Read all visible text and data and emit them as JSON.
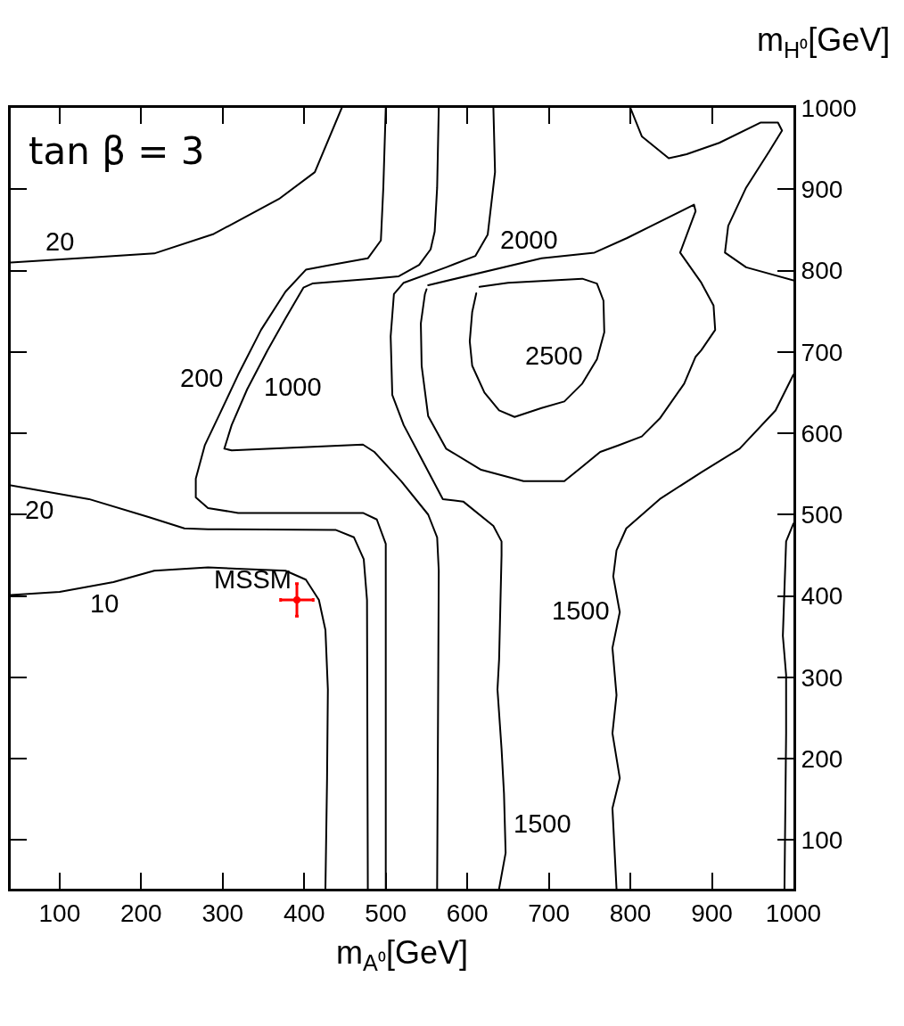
{
  "chart_data": {
    "type": "line",
    "xlabel": "m$_{A⁰}$[GeV]",
    "ylabel": "m$_{H⁰}$[GeV]",
    "xlim": [
      40,
      1000
    ],
    "ylim": [
      40,
      1000
    ],
    "xticks": [
      100,
      200,
      300,
      400,
      500,
      600,
      700,
      800,
      900,
      1000
    ],
    "yticks": [
      100,
      200,
      300,
      400,
      500,
      600,
      700,
      800,
      900,
      1000
    ],
    "grid": false,
    "legend": false,
    "marker": "none",
    "line_style": "solid",
    "annotations": [
      "tan β = 3",
      {
        "text": "20",
        "x": 100,
        "y": 814
      },
      {
        "text": "20",
        "x": 100,
        "y": 525
      },
      {
        "text": "10",
        "x": 130,
        "y": 410
      },
      {
        "text": "200",
        "x": 308,
        "y": 648
      },
      {
        "text": "1000",
        "x": 342,
        "y": 677
      },
      {
        "text": "2000",
        "x": 720,
        "y": 818
      },
      {
        "text": "2500",
        "x": 750,
        "y": 676
      },
      {
        "text": "1500",
        "x": 783,
        "y": 402
      },
      {
        "text": "1500",
        "x": 646,
        "y": 120
      }
    ],
    "series": [
      {
        "color": "#000000",
        "x": [
          40,
          136,
          216,
          289,
          369,
          413,
          446
        ],
        "values": [
          810,
          816,
          821,
          845,
          888,
          921,
          1000
        ]
      },
      {
        "color": "#000000",
        "x": [
          40,
          136,
          209,
          253,
          282,
          439,
          461,
          473,
          477,
          478
        ],
        "values": [
          536,
          519,
          497,
          483,
          482,
          481,
          472,
          445,
          395,
          40
        ]
      },
      {
        "color": "#000000",
        "x": [
          40,
          100,
          166,
          216,
          282,
          377,
          402,
          418,
          426,
          429,
          428,
          426
        ],
        "values": [
          401,
          405,
          417,
          431,
          435,
          431,
          420,
          395,
          358,
          285,
          176,
          40
        ]
      },
      {
        "color": "#000000",
        "x": [
          500,
          497,
          494,
          478,
          428,
          402,
          377,
          347,
          319,
          297,
          278,
          267,
          267,
          282,
          319,
          472,
          489,
          500,
          500
        ],
        "values": [
          1000,
          902,
          837,
          815,
          806,
          801,
          774,
          727,
          672,
          625,
          585,
          544,
          521,
          508,
          502,
          502,
          494,
          464,
          40
        ]
      },
      {
        "color": "#000000",
        "x": [
          565,
          563,
          560,
          555,
          541,
          516,
          483,
          410,
          399,
          377,
          355,
          330,
          311,
          302,
          311,
          472,
          486,
          519,
          552,
          563,
          565,
          563
        ],
        "values": [
          1000,
          902,
          848,
          826,
          807,
          793,
          790,
          784,
          779,
          741,
          702,
          654,
          610,
          581,
          579,
          586,
          577,
          541,
          500,
          472,
          431,
          40
        ]
      },
      {
        "color": "#000000",
        "x": [
          632,
          634,
          625,
          610,
          574,
          522,
          510,
          506,
          508,
          522,
          541,
          570,
          595,
          632,
          642,
          642,
          639,
          637,
          642,
          645,
          647,
          639
        ],
        "values": [
          1000,
          921,
          844,
          818,
          804,
          785,
          771,
          719,
          647,
          610,
          574,
          519,
          516,
          486,
          467,
          450,
          322,
          285,
          212,
          157,
          84,
          40
        ]
      },
      {
        "color": "#000000",
        "x": [
          1000,
          978,
          934,
          887,
          836,
          795,
          783,
          779,
          787,
          778,
          783,
          778,
          787,
          778,
          783
        ],
        "values": [
          672,
          628,
          581,
          552,
          519,
          483,
          456,
          424,
          380,
          336,
          278,
          231,
          176,
          139,
          40
        ]
      },
      {
        "color": "#000000",
        "x": [
          1000,
          991,
          987,
          991,
          991,
          989
        ],
        "values": [
          489,
          467,
          351,
          303,
          231,
          40
        ]
      },
      {
        "color": "#000000",
        "x": [
          800,
          814,
          847,
          869,
          909,
          960,
          981,
          986,
          970,
          942,
          920,
          916,
          942,
          1000
        ],
        "values": [
          1000,
          965,
          938,
          943,
          957,
          982,
          982,
          972,
          946,
          902,
          855,
          822,
          804,
          788
        ]
      },
      {
        "color": "#000000",
        "x": [
          552,
          691,
          756,
          796,
          878,
          880,
          861,
          887,
          902,
          904,
          887,
          880,
          866,
          836,
          814,
          785,
          763,
          741,
          719,
          669,
          617,
          574,
          552,
          544,
          543,
          548,
          550
        ],
        "values": [
          782,
          815,
          822,
          840,
          881,
          873,
          822,
          785,
          757,
          727,
          702,
          694,
          661,
          618,
          596,
          585,
          577,
          559,
          541,
          541,
          555,
          581,
          621,
          683,
          735,
          771,
          777
        ]
      },
      {
        "color": "#000000",
        "x": [
          615,
          650,
          741,
          759,
          767,
          768,
          759,
          741,
          719,
          691,
          658,
          639,
          621,
          606,
          603,
          606,
          611
        ],
        "values": [
          780,
          785,
          790,
          784,
          763,
          724,
          691,
          661,
          639,
          631,
          620,
          628,
          650,
          683,
          713,
          749,
          772
        ]
      },
      {
        "type": "scatter",
        "name": "MSSM",
        "color": "#ff0000",
        "marker": "circle",
        "x": [
          391
        ],
        "values": [
          395
        ],
        "errors": [
          20
        ],
        "xerrors": [
          20
        ]
      }
    ]
  }
}
